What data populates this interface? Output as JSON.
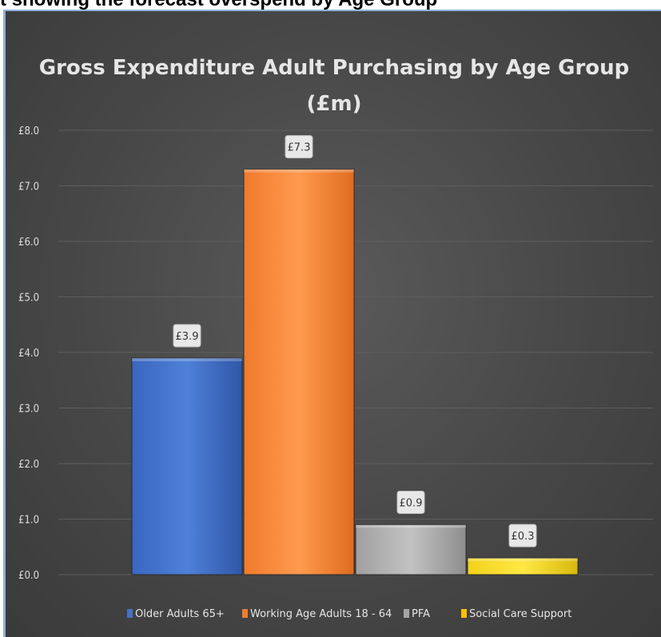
{
  "heading": "t showing the forecast overspend by Age Group",
  "chart_data": {
    "type": "bar",
    "title_line1": "Gross Expenditure Adult Purchasing by Age Group",
    "title_line2": "(£m)",
    "categories": [
      "Older Adults 65+",
      "Working Age Adults 18 - 64",
      "PFA",
      "Social Care Support"
    ],
    "values": [
      3.9,
      7.3,
      0.9,
      0.3
    ],
    "data_labels": [
      "£3.9",
      "£7.3",
      "£0.9",
      "£0.3"
    ],
    "colors": [
      "#4472c4",
      "#ed7d31",
      "#a5a5a5",
      "#ffc000"
    ],
    "ylim": [
      0,
      8
    ],
    "yticks": [
      "£0.0",
      "£1.0",
      "£2.0",
      "£3.0",
      "£4.0",
      "£5.0",
      "£6.0",
      "£7.0",
      "£8.0"
    ],
    "xlabel": "",
    "ylabel": "",
    "grid": true,
    "legend_position": "bottom"
  }
}
